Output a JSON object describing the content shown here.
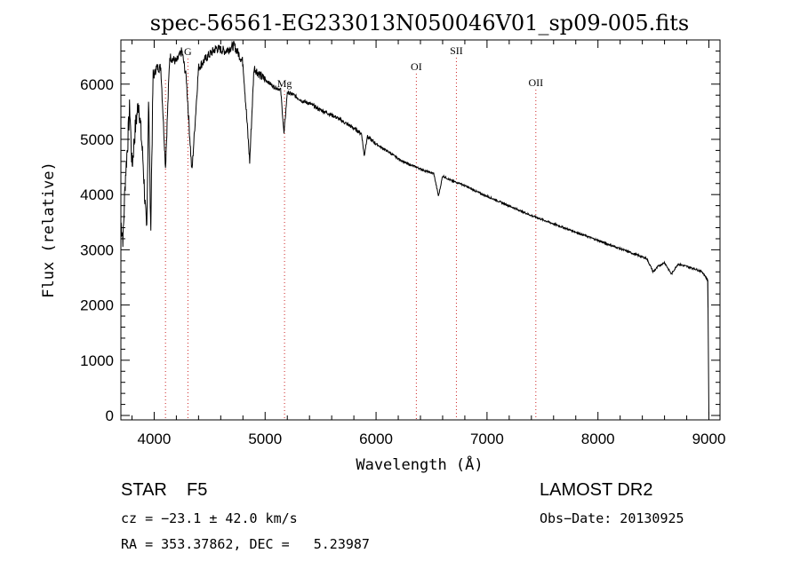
{
  "chart_data": {
    "type": "line",
    "title": "spec-56561-EG233013N050046V01_sp09-005.fits",
    "xlabel": "Wavelength (Å)",
    "ylabel": "Flux (relative)",
    "xlim": [
      3700,
      9100
    ],
    "ylim": [
      -80,
      6800
    ],
    "x_ticks": [
      4000,
      5000,
      6000,
      7000,
      8000,
      9000
    ],
    "y_ticks": [
      0,
      1000,
      2000,
      3000,
      4000,
      5000,
      6000
    ],
    "grid": false,
    "legend": "none",
    "series": [
      {
        "x": [
          3700,
          3720,
          3740,
          3760,
          3780,
          3800,
          3830,
          3860,
          3900,
          3933,
          3950,
          3968,
          3990,
          4020,
          4060,
          4102,
          4140,
          4200,
          4250,
          4290,
          4340,
          4400,
          4480,
          4560,
          4640,
          4720,
          4800,
          4861,
          4900,
          4960,
          5020,
          5080,
          5140,
          5170,
          5200,
          5260,
          5330,
          5400,
          5480,
          5560,
          5640,
          5720,
          5800,
          5870,
          5893,
          5920,
          5980,
          6050,
          6130,
          6200,
          6280,
          6360,
          6440,
          6520,
          6563,
          6600,
          6680,
          6760,
          6840,
          6920,
          7000,
          7080,
          7160,
          7240,
          7320,
          7400,
          7480,
          7560,
          7640,
          7720,
          7800,
          7880,
          7960,
          8040,
          8120,
          8200,
          8280,
          8360,
          8440,
          8498,
          8542,
          8600,
          8662,
          8720,
          8800,
          8880,
          8940,
          8990,
          9000
        ],
        "y": [
          3500,
          3200,
          4300,
          4900,
          5600,
          4500,
          5200,
          5700,
          4600,
          3200,
          5900,
          3300,
          6100,
          6300,
          6300,
          4500,
          6500,
          6400,
          6600,
          6100,
          4400,
          6300,
          6500,
          6650,
          6600,
          6700,
          6400,
          4600,
          6300,
          6150,
          6050,
          5950,
          5900,
          5100,
          5850,
          5800,
          5700,
          5650,
          5550,
          5480,
          5400,
          5300,
          5200,
          5100,
          4700,
          5050,
          4950,
          4850,
          4750,
          4650,
          4560,
          4500,
          4430,
          4380,
          3970,
          4340,
          4250,
          4200,
          4120,
          4040,
          3970,
          3900,
          3830,
          3760,
          3690,
          3620,
          3560,
          3500,
          3440,
          3380,
          3320,
          3260,
          3200,
          3140,
          3080,
          3020,
          2960,
          2900,
          2840,
          2600,
          2700,
          2770,
          2560,
          2740,
          2700,
          2650,
          2600,
          2450,
          0
        ]
      }
    ],
    "line_markers": [
      {
        "label": "G",
        "x": 4304
      },
      {
        "label": "Mg",
        "x": 5175
      },
      {
        "label": "OI",
        "x": 6363
      },
      {
        "label": "SII",
        "x": 6724
      },
      {
        "label": "OII",
        "x": 7440
      }
    ],
    "extra_markers_x": [
      4102
    ]
  },
  "info": {
    "class_label": "STAR",
    "subclass": "F5",
    "survey": "LAMOST DR2",
    "cz": "cz = −23.1 ± 42.0 km/s",
    "obs_date": "Obs−Date: 20130925",
    "coords": "RA = 353.37862, DEC =   5.23987"
  }
}
